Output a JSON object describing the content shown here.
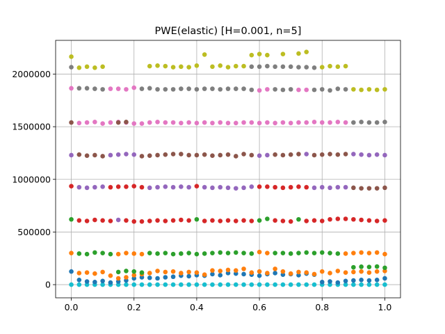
{
  "chart_data": {
    "type": "scatter",
    "title": "PWE(elastic) [H=0.001, n=5]",
    "xlabel": "",
    "ylabel": "",
    "xlim": [
      -0.05,
      1.05
    ],
    "ylim": [
      -125000,
      2320000
    ],
    "xticks": [
      0.0,
      0.2,
      0.4,
      0.6,
      0.8,
      1.0
    ],
    "xtick_labels": [
      "0.0",
      "0.2",
      "0.4",
      "0.6",
      "0.8",
      "1.0"
    ],
    "yticks": [
      0,
      500000,
      1000000,
      1500000,
      2000000
    ],
    "ytick_labels": [
      "0",
      "500000",
      "1000000",
      "1500000",
      "2000000"
    ],
    "grid": true,
    "legend": "none",
    "marker": "circle",
    "colors": [
      "#1f77b4",
      "#ff7f0e",
      "#2ca02c",
      "#d62728",
      "#9467bd",
      "#8c564b",
      "#e377c2",
      "#7f7f7f",
      "#bcbd22",
      "#17becf"
    ],
    "x": [
      0.0,
      0.025,
      0.05,
      0.075,
      0.1,
      0.125,
      0.15,
      0.175,
      0.2,
      0.225,
      0.25,
      0.275,
      0.3,
      0.325,
      0.35,
      0.375,
      0.4,
      0.425,
      0.45,
      0.475,
      0.5,
      0.525,
      0.55,
      0.575,
      0.6,
      0.625,
      0.65,
      0.675,
      0.7,
      0.725,
      0.75,
      0.775,
      0.8,
      0.825,
      0.85,
      0.875,
      0.9,
      0.925,
      0.95,
      0.975,
      1.0
    ],
    "series": [
      {
        "color_index": 9,
        "values": [
          0,
          0,
          0,
          0,
          0,
          0,
          0,
          0,
          0,
          0,
          0,
          0,
          0,
          0,
          0,
          0,
          0,
          0,
          0,
          0,
          0,
          0,
          0,
          0,
          0,
          0,
          0,
          0,
          0,
          0,
          0,
          0,
          0,
          0,
          0,
          0,
          0,
          0,
          0,
          0,
          0
        ]
      },
      {
        "color_index": 0,
        "values": [
          125000,
          45000,
          30000,
          25000,
          35000,
          20000,
          30000,
          40000,
          60000,
          70000,
          65000,
          60000,
          70000,
          75000,
          85000,
          80000,
          90000,
          85000,
          100000,
          90000,
          110000,
          105000,
          100000,
          95000,
          85000,
          100000,
          110000,
          95000,
          100000,
          90000,
          105000,
          95000,
          25000,
          30000,
          20000,
          35000,
          40000,
          45000,
          40000,
          45000,
          60000
        ]
      },
      {
        "color_index": 1,
        "values": [
          null,
          110000,
          115000,
          105000,
          120000,
          85000,
          60000,
          70000,
          90000,
          100000,
          110000,
          130000,
          120000,
          125000,
          110000,
          120000,
          115000,
          95000,
          135000,
          130000,
          140000,
          135000,
          150000,
          115000,
          125000,
          110000,
          150000,
          125000,
          105000,
          120000,
          115000,
          100000,
          125000,
          110000,
          130000,
          115000,
          120000,
          125000,
          115000,
          125000,
          130000
        ]
      },
      {
        "color_index": 2,
        "values": [
          620000,
          null,
          null,
          null,
          null,
          null,
          120000,
          130000,
          125000,
          115000,
          null,
          null,
          null,
          null,
          null,
          null,
          620000,
          null,
          null,
          null,
          null,
          null,
          null,
          null,
          610000,
          625000,
          null,
          null,
          null,
          620000,
          null,
          null,
          null,
          null,
          null,
          null,
          165000,
          170000,
          168000,
          172000,
          160000
        ]
      },
      {
        "color_index": 2,
        "values": [
          null,
          295000,
          290000,
          305000,
          300000,
          290000,
          null,
          null,
          null,
          null,
          300000,
          295000,
          300000,
          290000,
          295000,
          300000,
          290000,
          295000,
          300000,
          305000,
          300000,
          305000,
          300000,
          295000,
          null,
          null,
          300000,
          300000,
          295000,
          300000,
          305000,
          300000,
          305000,
          300000,
          295000,
          null,
          null,
          null,
          null,
          null,
          null
        ]
      },
      {
        "color_index": 1,
        "values": [
          300000,
          null,
          null,
          null,
          null,
          null,
          290000,
          300000,
          295000,
          290000,
          null,
          null,
          null,
          null,
          null,
          null,
          null,
          null,
          null,
          null,
          null,
          null,
          null,
          null,
          310000,
          300000,
          null,
          null,
          null,
          null,
          null,
          null,
          null,
          null,
          null,
          295000,
          300000,
          305000,
          300000,
          305000,
          290000
        ]
      },
      {
        "color_index": 3,
        "values": [
          null,
          610000,
          605000,
          615000,
          610000,
          605000,
          null,
          610000,
          600000,
          600000,
          605000,
          610000,
          605000,
          610000,
          615000,
          610000,
          null,
          605000,
          610000,
          605000,
          610000,
          605000,
          610000,
          605000,
          null,
          null,
          610000,
          605000,
          600000,
          null,
          605000,
          610000,
          605000,
          620000,
          625000,
          625000,
          620000,
          615000,
          610000,
          605000,
          610000
        ]
      },
      {
        "color_index": 4,
        "values": [
          null,
          null,
          null,
          null,
          null,
          null,
          615000,
          null,
          null,
          null,
          null,
          null,
          null,
          null,
          null,
          null,
          null,
          null,
          null,
          null,
          null,
          null,
          null,
          null,
          null,
          null,
          null,
          null,
          null,
          null,
          null,
          null,
          null,
          null,
          null,
          null,
          null,
          null,
          null,
          null,
          null
        ]
      },
      {
        "color_index": 3,
        "values": [
          935000,
          null,
          null,
          null,
          null,
          925000,
          930000,
          930000,
          935000,
          925000,
          null,
          null,
          null,
          null,
          null,
          null,
          935000,
          null,
          null,
          null,
          null,
          null,
          null,
          null,
          930000,
          930000,
          925000,
          920000,
          925000,
          930000,
          925000,
          null,
          null,
          null,
          null,
          null,
          null,
          null,
          null,
          null,
          null
        ]
      },
      {
        "color_index": 4,
        "values": [
          null,
          925000,
          920000,
          925000,
          930000,
          null,
          null,
          null,
          null,
          null,
          920000,
          925000,
          930000,
          925000,
          930000,
          925000,
          null,
          925000,
          920000,
          925000,
          920000,
          915000,
          920000,
          930000,
          null,
          null,
          null,
          null,
          null,
          null,
          null,
          920000,
          925000,
          920000,
          925000,
          925000,
          null,
          null,
          null,
          null,
          null
        ]
      },
      {
        "color_index": 5,
        "values": [
          null,
          null,
          null,
          null,
          null,
          null,
          null,
          null,
          null,
          null,
          null,
          null,
          null,
          null,
          null,
          null,
          null,
          null,
          null,
          null,
          null,
          null,
          null,
          null,
          null,
          null,
          null,
          null,
          null,
          null,
          null,
          null,
          null,
          null,
          null,
          null,
          920000,
          915000,
          915000,
          915000,
          920000
        ]
      },
      {
        "color_index": 4,
        "values": [
          1230000,
          null,
          null,
          null,
          null,
          1230000,
          1235000,
          1240000,
          1235000,
          null,
          null,
          null,
          null,
          null,
          null,
          null,
          null,
          null,
          null,
          null,
          null,
          null,
          null,
          null,
          1225000,
          1230000,
          null,
          null,
          null,
          null,
          1240000,
          null,
          null,
          null,
          null,
          null,
          1240000,
          1235000,
          1230000,
          1235000,
          1230000
        ]
      },
      {
        "color_index": 5,
        "values": [
          null,
          1235000,
          1225000,
          1230000,
          1220000,
          null,
          null,
          null,
          null,
          1220000,
          1225000,
          1230000,
          1235000,
          1240000,
          1240000,
          1230000,
          1230000,
          1235000,
          1225000,
          1230000,
          1235000,
          1220000,
          1240000,
          1230000,
          null,
          null,
          1235000,
          1230000,
          1235000,
          1240000,
          null,
          1230000,
          1235000,
          1240000,
          1235000,
          1240000,
          null,
          null,
          null,
          null,
          null
        ]
      },
      {
        "color_index": 5,
        "values": [
          1540000,
          null,
          null,
          null,
          null,
          null,
          null,
          null,
          null,
          null,
          null,
          null,
          null,
          null,
          null,
          null,
          null,
          null,
          null,
          null,
          null,
          null,
          null,
          null,
          null,
          null,
          null,
          null,
          null,
          null,
          null,
          null,
          null,
          null,
          null,
          null,
          null,
          null,
          null,
          null,
          null
        ]
      },
      {
        "color_index": 6,
        "values": [
          null,
          1535000,
          1540000,
          1545000,
          1530000,
          1540000,
          1545000,
          1540000,
          1530000,
          1530000,
          1540000,
          1545000,
          1540000,
          1540000,
          1535000,
          1540000,
          1535000,
          1540000,
          1535000,
          1540000,
          1535000,
          1535000,
          1540000,
          1540000,
          1535000,
          1540000,
          1535000,
          1540000,
          1535000,
          1540000,
          1540000,
          1545000,
          1540000,
          1540000,
          1545000,
          1540000,
          null,
          null,
          null,
          null,
          null
        ]
      },
      {
        "color_index": 7,
        "values": [
          null,
          null,
          null,
          null,
          null,
          null,
          null,
          null,
          null,
          null,
          null,
          null,
          null,
          null,
          null,
          null,
          null,
          null,
          null,
          null,
          null,
          null,
          null,
          null,
          null,
          null,
          null,
          null,
          null,
          null,
          null,
          null,
          null,
          null,
          null,
          null,
          1540000,
          1545000,
          1540000,
          1540000,
          1545000
        ]
      },
      {
        "color_index": 5,
        "values": [
          null,
          null,
          null,
          null,
          null,
          null,
          1540000,
          1545000,
          null,
          null,
          null,
          null,
          null,
          null,
          null,
          null,
          null,
          null,
          null,
          null,
          null,
          null,
          null,
          null,
          null,
          null,
          null,
          null,
          null,
          null,
          null,
          null,
          null,
          null,
          null,
          null,
          null,
          null,
          null,
          null,
          null
        ]
      },
      {
        "color_index": 6,
        "values": [
          1865000,
          null,
          null,
          null,
          null,
          1860000,
          1860000,
          1855000,
          1870000,
          null,
          null,
          null,
          null,
          null,
          null,
          null,
          null,
          null,
          null,
          null,
          null,
          null,
          null,
          null,
          1845000,
          1855000,
          null,
          null,
          null,
          1850000,
          1850000,
          null,
          null,
          null,
          null,
          null,
          null,
          null,
          null,
          null,
          null
        ]
      },
      {
        "color_index": 7,
        "values": [
          null,
          1865000,
          1865000,
          1860000,
          1855000,
          null,
          null,
          null,
          null,
          1860000,
          1865000,
          1855000,
          1855000,
          1855000,
          1860000,
          1860000,
          1855000,
          1860000,
          1860000,
          1855000,
          1860000,
          1860000,
          1860000,
          1850000,
          null,
          null,
          1855000,
          1850000,
          1855000,
          null,
          null,
          1850000,
          1855000,
          1845000,
          1860000,
          1855000,
          null,
          null,
          null,
          null,
          null
        ]
      },
      {
        "color_index": 8,
        "values": [
          null,
          null,
          null,
          null,
          null,
          null,
          null,
          null,
          null,
          null,
          null,
          null,
          null,
          null,
          null,
          null,
          null,
          null,
          null,
          null,
          null,
          null,
          null,
          null,
          null,
          null,
          null,
          null,
          null,
          null,
          null,
          null,
          null,
          null,
          null,
          null,
          1855000,
          1850000,
          1855000,
          1850000,
          1855000
        ]
      },
      {
        "color_index": 8,
        "values": [
          2165000,
          2060000,
          2070000,
          2060000,
          2070000,
          null,
          null,
          null,
          null,
          null,
          2075000,
          2080000,
          2075000,
          2065000,
          2070000,
          2065000,
          2080000,
          2185000,
          2070000,
          2080000,
          2065000,
          2075000,
          2075000,
          2180000,
          2190000,
          2180000,
          null,
          2190000,
          null,
          2195000,
          2210000,
          null,
          2065000,
          2075000,
          2070000,
          2075000,
          null,
          null,
          null,
          null,
          null
        ]
      },
      {
        "color_index": 7,
        "values": [
          2065000,
          null,
          null,
          null,
          null,
          null,
          null,
          null,
          null,
          null,
          null,
          null,
          null,
          null,
          null,
          null,
          null,
          null,
          null,
          null,
          null,
          null,
          null,
          2070000,
          2070000,
          2075000,
          2070000,
          2070000,
          2070000,
          2065000,
          2065000,
          2060000,
          null,
          null,
          null,
          null,
          null,
          null,
          null,
          null,
          null
        ]
      }
    ]
  }
}
